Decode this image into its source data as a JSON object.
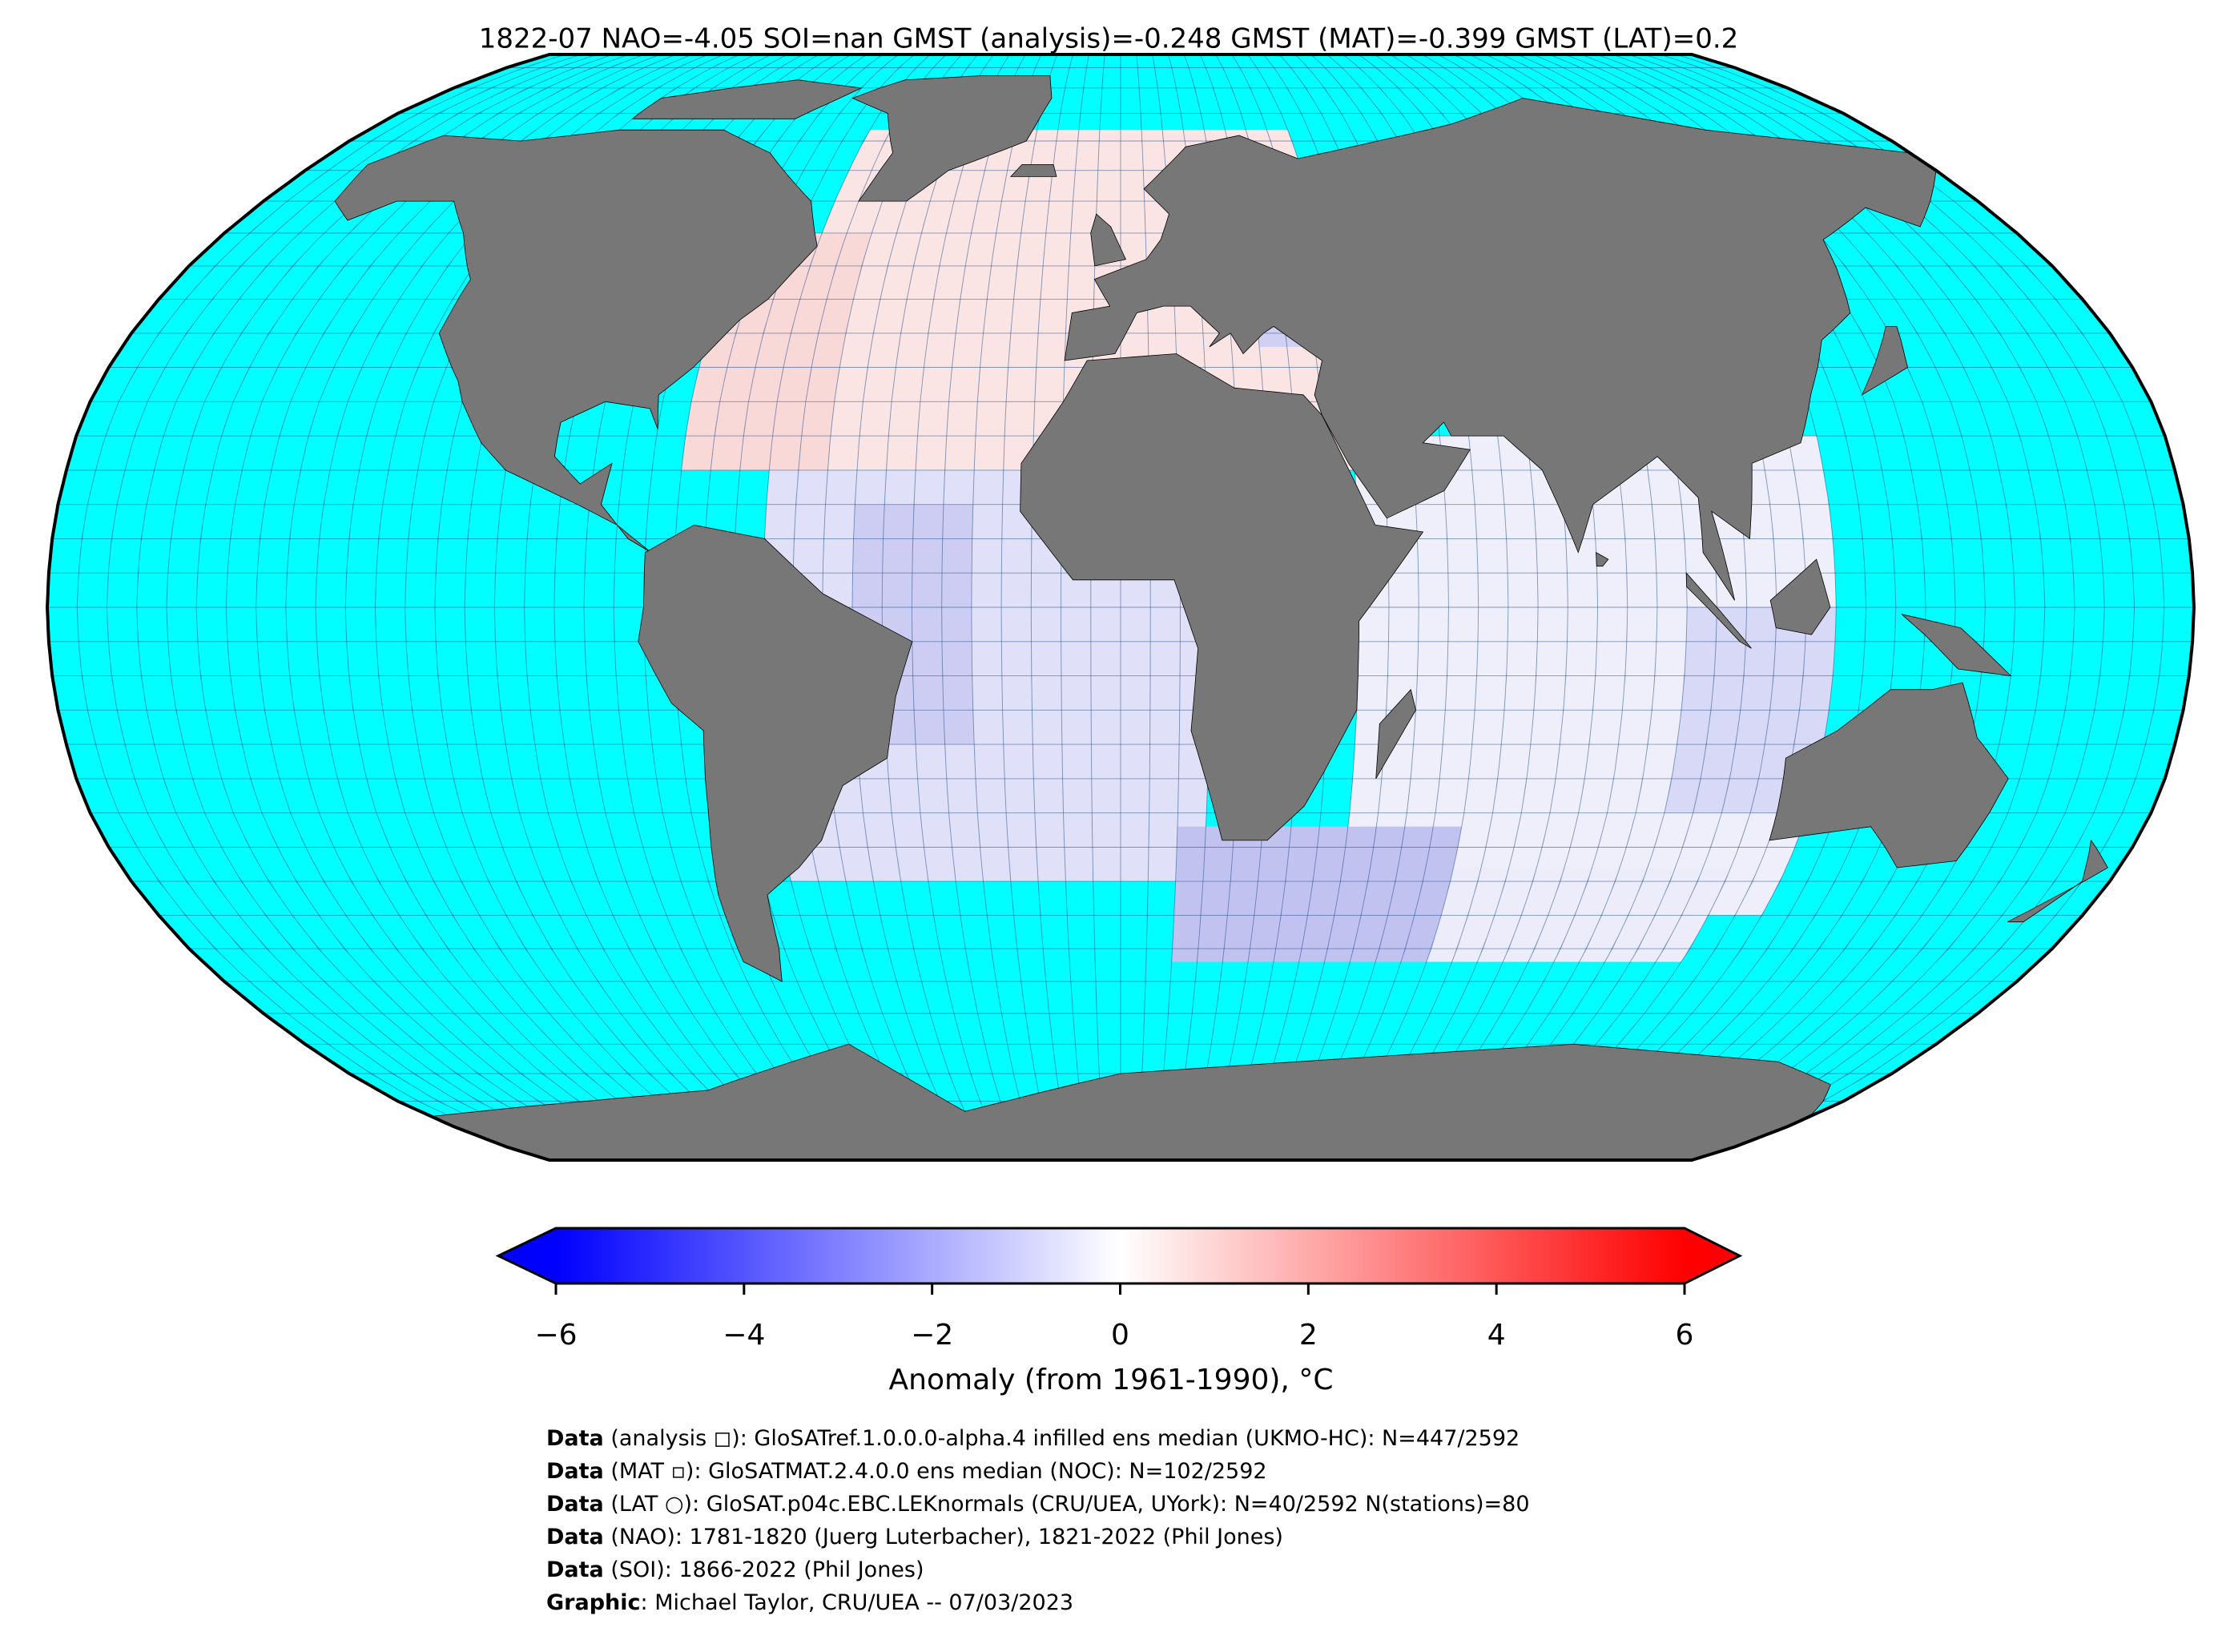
{
  "title": "1822-07 NAO=-4.05 SOI=nan GMST (analysis)=-0.248 GMST (MAT)=-0.399 GMST (LAT)=0.2",
  "colorbar": {
    "range": [
      -6,
      6
    ],
    "ticks": [
      {
        "value": -6,
        "label": "−6"
      },
      {
        "value": -4,
        "label": "−4"
      },
      {
        "value": -2,
        "label": "−2"
      },
      0,
      2,
      4,
      6
    ],
    "label": "Anomaly (from 1961-1990), °C"
  },
  "credits": [
    {
      "label": "Data",
      "text": " (analysis ◻): GloSATref.1.0.0.0-alpha.4 infilled ens median (UKMO-HC): N=447/2592"
    },
    {
      "label": "Data",
      "text": " (MAT ▫): GloSATMAT.2.4.0.0 ens median (NOC): N=102/2592"
    },
    {
      "label": "Data",
      "text": " (LAT ○): GloSAT.p04c.EBC.LEKnormals (CRU/UEA, UYork): N=40/2592 N(stations)=80"
    },
    {
      "label": "Data",
      "text": " (NAO): 1781-1820 (Juerg Luterbacher), 1821-2022 (Phil Jones)"
    },
    {
      "label": "Data",
      "text": " (SOI): 1866-2022 (Phil Jones)"
    },
    {
      "label": "Graphic",
      "text": ": Michael Taylor, CRU/UEA -- 07/03/2023"
    }
  ]
}
